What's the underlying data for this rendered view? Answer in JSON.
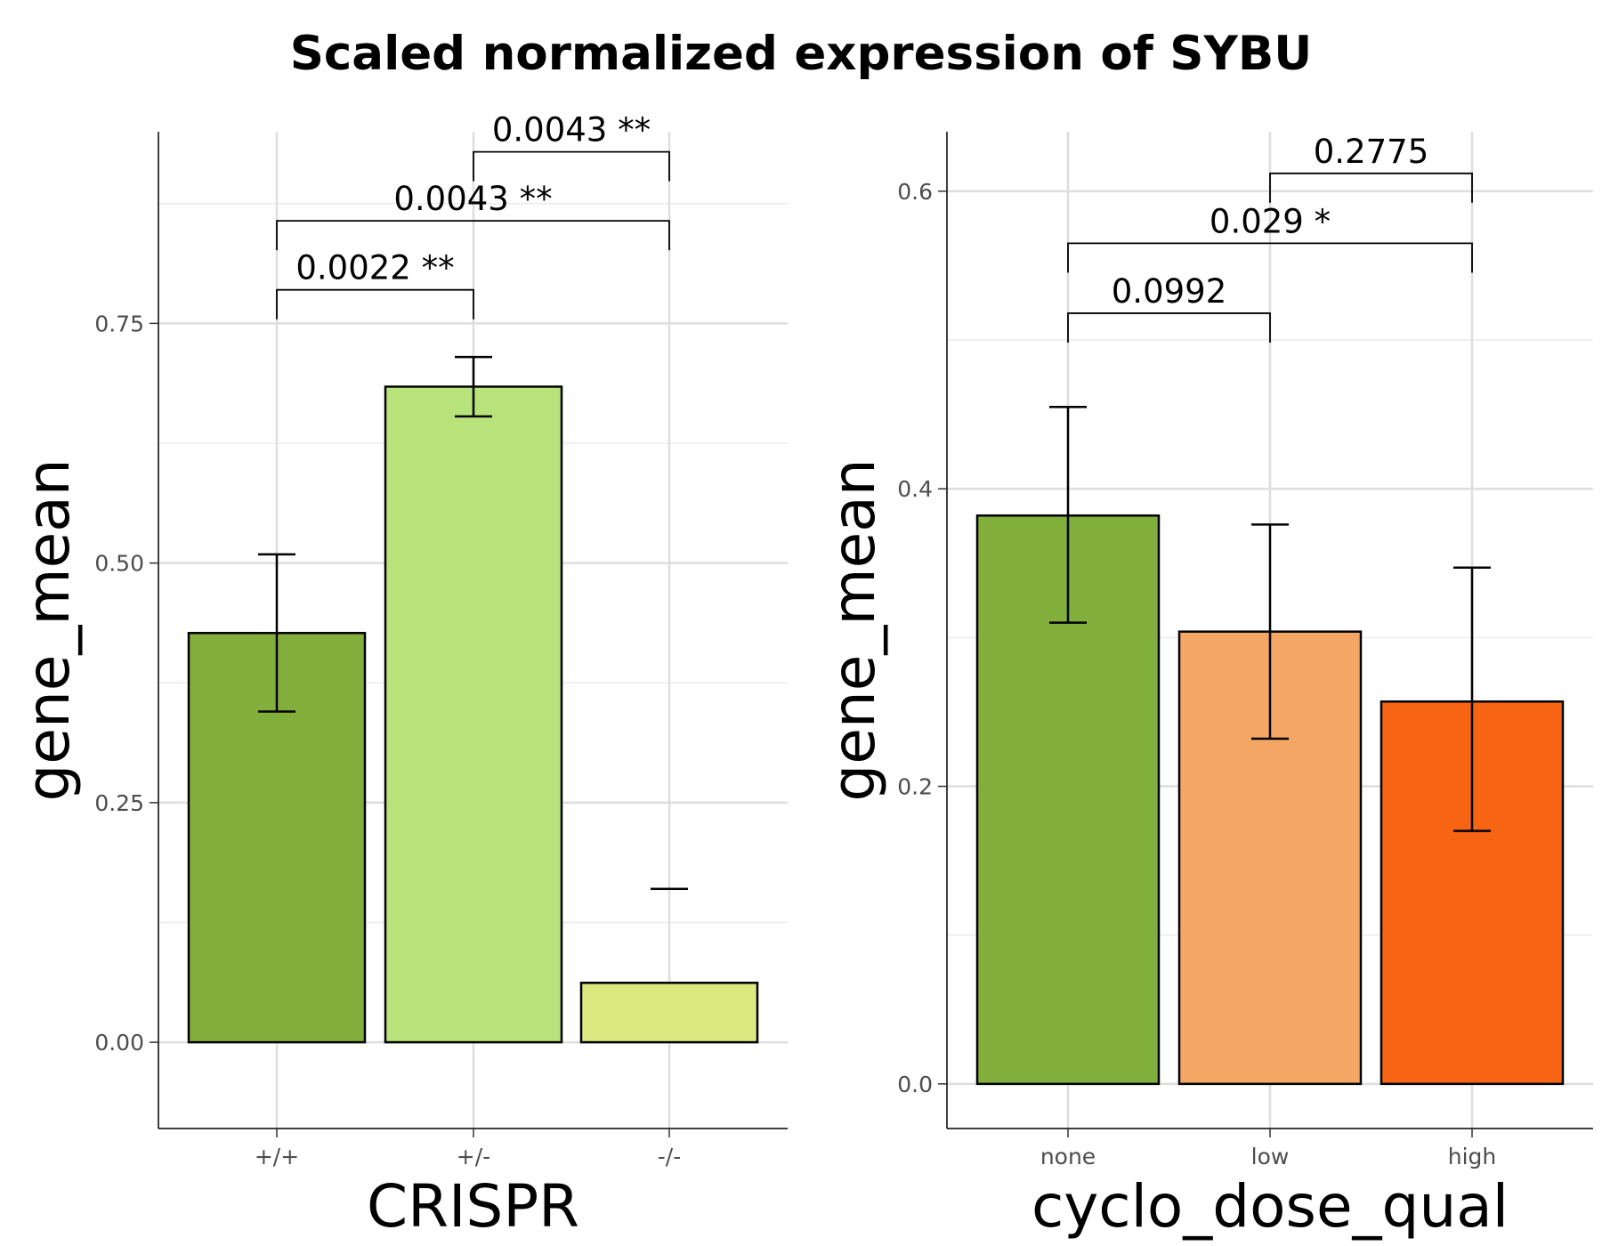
{
  "title": "Scaled normalized expression of SYBU",
  "chart_data": [
    {
      "type": "bar",
      "xlabel": "CRISPR",
      "ylabel": "gene_mean",
      "ylim": [
        -0.09,
        0.95
      ],
      "yticks": [
        0.0,
        0.25,
        0.5,
        0.75
      ],
      "ytick_labels": [
        "0.00",
        "0.25",
        "0.50",
        "0.75"
      ],
      "minor_yticks": [
        0.125,
        0.375,
        0.625,
        0.875
      ],
      "grid": true,
      "categories": [
        "+/+",
        "+/-",
        "-/-"
      ],
      "values": [
        0.427,
        0.684,
        0.062
      ],
      "error_low": [
        0.345,
        0.653,
        null
      ],
      "error_high": [
        0.509,
        0.715,
        0.16
      ],
      "colors": [
        "#82ae3c",
        "#b8e27a",
        "#dce880"
      ],
      "comparisons": [
        {
          "from": 0,
          "to": 1,
          "label": "0.0022 **",
          "y": 0.785
        },
        {
          "from": 0,
          "to": 2,
          "label": "0.0043 **",
          "y": 0.857
        },
        {
          "from": 1,
          "to": 2,
          "label": "0.0043 **",
          "y": 0.929
        }
      ]
    },
    {
      "type": "bar",
      "xlabel": "cyclo_dose_qual",
      "ylabel": "gene_mean",
      "ylim": [
        -0.03,
        0.64
      ],
      "yticks": [
        0.0,
        0.2,
        0.4,
        0.6
      ],
      "ytick_labels": [
        "0.0",
        "0.2",
        "0.4",
        "0.6"
      ],
      "minor_yticks": [
        0.1,
        0.3,
        0.5
      ],
      "grid": true,
      "categories": [
        "none",
        "low",
        "high"
      ],
      "values": [
        0.382,
        0.304,
        0.257
      ],
      "error_low": [
        0.31,
        0.232,
        0.17
      ],
      "error_high": [
        0.455,
        0.376,
        0.347
      ],
      "colors": [
        "#82ae3c",
        "#f4a664",
        "#f76414"
      ],
      "comparisons": [
        {
          "from": 0,
          "to": 1,
          "label": "0.0992",
          "y": 0.518
        },
        {
          "from": 0,
          "to": 2,
          "label": "0.029 *",
          "y": 0.565
        },
        {
          "from": 1,
          "to": 2,
          "label": "0.2775",
          "y": 0.612
        }
      ]
    }
  ]
}
